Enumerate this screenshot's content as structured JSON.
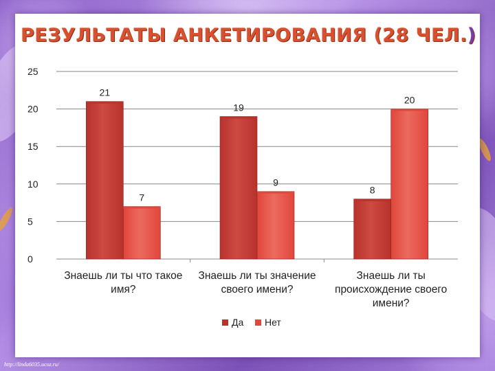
{
  "slide": {
    "title": "РЕЗУЛЬТАТЫ АНКЕТИРОВАНИЯ (28 ЧЕЛ.",
    "title_close": ")",
    "credit": "http://linda6035.ucoz.ru/"
  },
  "colors": {
    "title": "#d9502e",
    "da": "#b8322c",
    "net": "#e0463c",
    "gridline": "#868686"
  },
  "chart_data": {
    "type": "bar",
    "categories": [
      [
        "Знаешь ли ты что такое",
        "имя?"
      ],
      [
        "Знаешь ли ты значение",
        "своего имени?"
      ],
      [
        "Знаешь ли ты",
        "происхождение своего",
        "имени?"
      ]
    ],
    "series": [
      {
        "name": "Да",
        "values": [
          21,
          19,
          8
        ]
      },
      {
        "name": "Нет",
        "values": [
          7,
          9,
          20
        ]
      }
    ],
    "ylim": [
      0,
      25
    ],
    "yticks": [
      0,
      5,
      10,
      15,
      20,
      25
    ],
    "grid": true,
    "legend": "bottom",
    "data_labels": true
  }
}
